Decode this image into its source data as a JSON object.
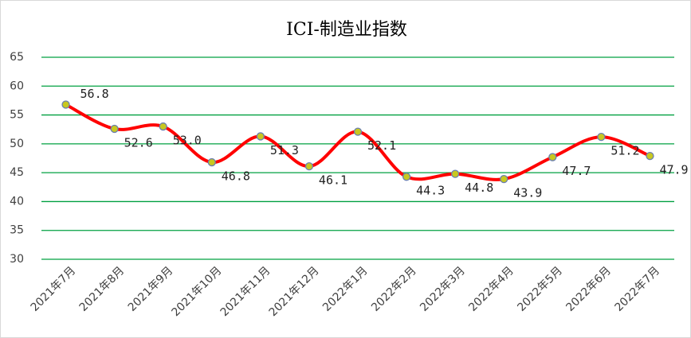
{
  "chart_data": {
    "type": "line",
    "title": "ICI-制造业指数",
    "categories": [
      "2021年7月",
      "2021年8月",
      "2021年9月",
      "2021年10月",
      "2021年11月",
      "2021年12月",
      "2022年1月",
      "2022年2月",
      "2022年3月",
      "2022年4月",
      "2022年5月",
      "2022年6月",
      "2022年7月"
    ],
    "values": [
      56.8,
      52.6,
      53.0,
      46.8,
      51.3,
      46.1,
      52.1,
      44.3,
      44.8,
      43.9,
      47.7,
      51.2,
      47.9
    ],
    "value_labels": [
      "56.8",
      "52.6",
      "53.0",
      "46.8",
      "51.3",
      "46.1",
      "52.1",
      "44.3",
      "44.8",
      "43.9",
      "47.7",
      "51.2",
      "47.9"
    ],
    "color": "#ff0000",
    "marker_color": "#c8c820",
    "ylim": [
      30,
      65
    ],
    "yticks": [
      30,
      35,
      40,
      45,
      50,
      55,
      60,
      65
    ],
    "grid": true,
    "grid_color": "#00a040",
    "smooth": true
  }
}
